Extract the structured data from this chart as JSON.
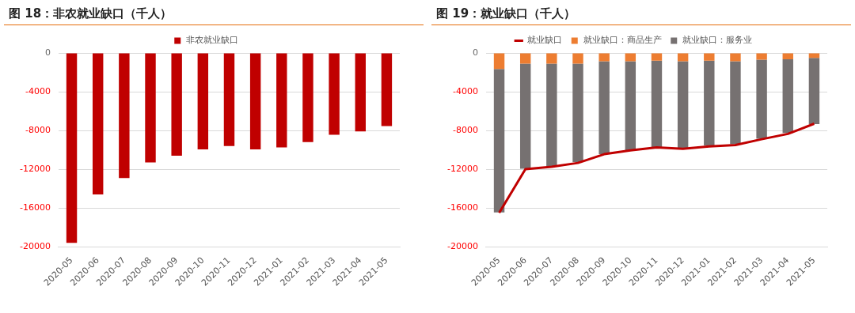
{
  "chart_data": [
    {
      "type": "bar",
      "title": "图 18：非农就业缺口（千人）",
      "categories": [
        "2020-05",
        "2020-06",
        "2020-07",
        "2020-08",
        "2020-09",
        "2020-10",
        "2020-11",
        "2020-12",
        "2021-01",
        "2021-02",
        "2021-03",
        "2021-04",
        "2021-05"
      ],
      "series": [
        {
          "name": "非农就业缺口",
          "color": "#c00000",
          "values": [
            -19600,
            -14600,
            -12900,
            -11300,
            -10600,
            -9950,
            -9600,
            -9950,
            -9750,
            -9200,
            -8450,
            -8100,
            -7550
          ]
        }
      ],
      "ylim": [
        -20000,
        0
      ],
      "yticks": [
        -20000,
        -16000,
        -12000,
        -8000,
        -4000,
        0
      ],
      "grid": "y",
      "legend": "top"
    },
    {
      "type": "bar",
      "title": "图 19：就业缺口（千人）",
      "categories": [
        "2020-05",
        "2020-06",
        "2020-07",
        "2020-08",
        "2020-09",
        "2020-10",
        "2020-11",
        "2020-12",
        "2021-01",
        "2021-02",
        "2021-03",
        "2021-04",
        "2021-05"
      ],
      "series": [
        {
          "name": "就业缺口：商品生产",
          "color": "#ed7d31",
          "values": [
            -1650,
            -1100,
            -1100,
            -1100,
            -850,
            -850,
            -800,
            -850,
            -800,
            -850,
            -700,
            -650,
            -500
          ]
        },
        {
          "name": "就业缺口：服务业",
          "color": "#767171",
          "values": [
            -14800,
            -10850,
            -10600,
            -10150,
            -9600,
            -9200,
            -8900,
            -8950,
            -8750,
            -8550,
            -8150,
            -7600,
            -6850
          ]
        },
        {
          "name": "就业缺口",
          "type": "line",
          "color": "#c00000",
          "values": [
            -16500,
            -12000,
            -11750,
            -11350,
            -10450,
            -10050,
            -9750,
            -9900,
            -9650,
            -9500,
            -8900,
            -8350,
            -7300
          ]
        }
      ],
      "stacked": true,
      "ylim": [
        -20000,
        0
      ],
      "yticks": [
        -20000,
        -16000,
        -12000,
        -8000,
        -4000,
        0
      ],
      "grid": "y",
      "legend": "top"
    }
  ]
}
